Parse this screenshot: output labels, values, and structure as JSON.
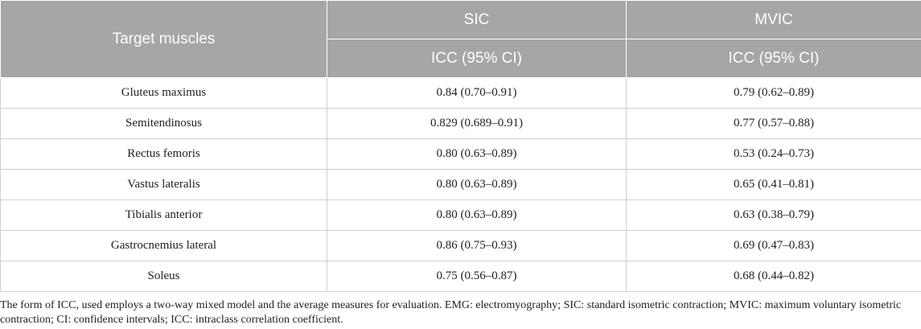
{
  "table": {
    "header": {
      "muscles": "Target muscles",
      "sic": "SIC",
      "mvic": "MVIC",
      "sic_sub": "ICC (95% CI)",
      "mvic_sub": "ICC (95% CI)"
    },
    "rows": [
      {
        "muscle": "Gluteus maximus",
        "sic": "0.84 (0.70–0.91)",
        "mvic": "0.79 (0.62–0.89)"
      },
      {
        "muscle": "Semitendinosus",
        "sic": "0.829 (0.689–0.91)",
        "mvic": "0.77 (0.57–0.88)"
      },
      {
        "muscle": "Rectus femoris",
        "sic": "0.80 (0.63–0.89)",
        "mvic": "0.53 (0.24–0.73)"
      },
      {
        "muscle": "Vastus lateralis",
        "sic": "0.80 (0.63–0.89)",
        "mvic": "0.65 (0.41–0.81)"
      },
      {
        "muscle": "Tibialis anterior",
        "sic": "0.80 (0.63–0.89)",
        "mvic": "0.63 (0.38–0.79)"
      },
      {
        "muscle": "Gastrocnemius lateral",
        "sic": "0.86 (0.75–0.93)",
        "mvic": "0.69 (0.47–0.83)"
      },
      {
        "muscle": "Soleus",
        "sic": "0.75 (0.56–0.87)",
        "mvic": "0.68 (0.44–0.82)"
      }
    ]
  },
  "footnote": "The form of ICC, used employs a two-way mixed model and the average measures for evaluation. EMG: electromyography; SIC: standard isometric contraction; MVIC: maximum voluntary isometric contraction; CI: confidence intervals; ICC: intraclass correlation coefficient.",
  "colors": {
    "header_bg": "#a6a6a6",
    "header_text": "#ffffff",
    "grid": "#cfcfcf"
  }
}
